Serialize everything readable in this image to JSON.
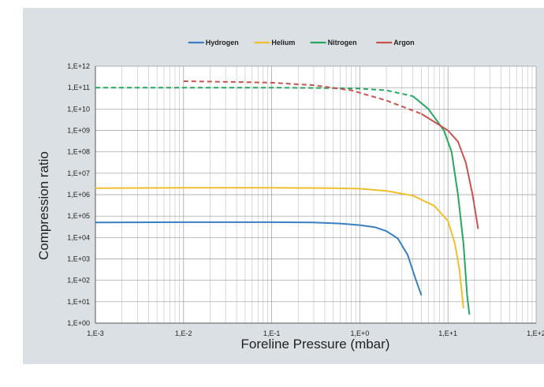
{
  "chart_data": {
    "type": "line",
    "title": "",
    "xlabel": "Foreline Pressure (mbar)",
    "ylabel": "Compression ratio",
    "x_scale": "log",
    "y_scale": "log",
    "xlim": [
      0.001,
      100
    ],
    "ylim": [
      1,
      1000000000000
    ],
    "x_tick_labels": [
      "1,E-3",
      "1,E-2",
      "1,E-1",
      "1,E+0",
      "1,E+1",
      "1,E+2"
    ],
    "y_tick_labels": [
      "1,E+00",
      "1,E+01",
      "1,E+02",
      "1,E+03",
      "1,E+04",
      "1,E+05",
      "1,E+06",
      "1,E+07",
      "1,E+08",
      "1,E+09",
      "1,E+10",
      "1,E+11",
      "1,E+12"
    ],
    "grid": true,
    "legend_position": "top-center",
    "series": [
      {
        "name": "Hydrogen",
        "color": "#3a7fc1",
        "points": [
          [
            0.001,
            50000
          ],
          [
            0.01,
            52000
          ],
          [
            0.1,
            52000
          ],
          [
            0.3,
            50000
          ],
          [
            0.6,
            45000
          ],
          [
            1.0,
            38000
          ],
          [
            1.5,
            30000
          ],
          [
            2.0,
            20000
          ],
          [
            2.7,
            9000
          ],
          [
            3.5,
            1500
          ],
          [
            4.2,
            150
          ],
          [
            5.0,
            20
          ]
        ]
      },
      {
        "name": "Helium",
        "color": "#f2be2c",
        "points": [
          [
            0.001,
            2000000
          ],
          [
            0.01,
            2100000
          ],
          [
            0.1,
            2100000
          ],
          [
            0.5,
            2000000
          ],
          [
            1.0,
            1900000
          ],
          [
            2.0,
            1500000
          ],
          [
            4.0,
            900000
          ],
          [
            7.0,
            300000
          ],
          [
            10.0,
            60000
          ],
          [
            12.0,
            5000
          ],
          [
            13.5,
            300
          ],
          [
            15.0,
            5
          ]
        ]
      },
      {
        "name": "Nitrogen",
        "color": "#27a860",
        "points": [
          [
            0.001,
            100000000000
          ],
          [
            0.01,
            100000000000
          ],
          [
            0.1,
            100000000000
          ],
          [
            0.5,
            95000000000
          ],
          [
            1.0,
            90000000000
          ],
          [
            2.0,
            75000000000
          ],
          [
            4.0,
            40000000000
          ],
          [
            6.0,
            10000000000
          ],
          [
            9.0,
            1000000000
          ],
          [
            11.0,
            100000000
          ],
          [
            13.0,
            1000000
          ],
          [
            15.0,
            5000
          ],
          [
            16.5,
            20
          ],
          [
            17.5,
            2.5
          ]
        ]
      },
      {
        "name": "Argon",
        "color": "#c9534f",
        "points": [
          [
            0.01,
            200000000000
          ],
          [
            0.05,
            180000000000
          ],
          [
            0.1,
            170000000000
          ],
          [
            0.3,
            130000000000
          ],
          [
            0.8,
            75000000000
          ],
          [
            2.0,
            25000000000
          ],
          [
            5.0,
            6000000000
          ],
          [
            10.0,
            1000000000
          ],
          [
            13.0,
            300000000
          ],
          [
            16.0,
            30000000
          ],
          [
            19.0,
            1000000
          ],
          [
            22.0,
            25000
          ]
        ]
      }
    ]
  }
}
